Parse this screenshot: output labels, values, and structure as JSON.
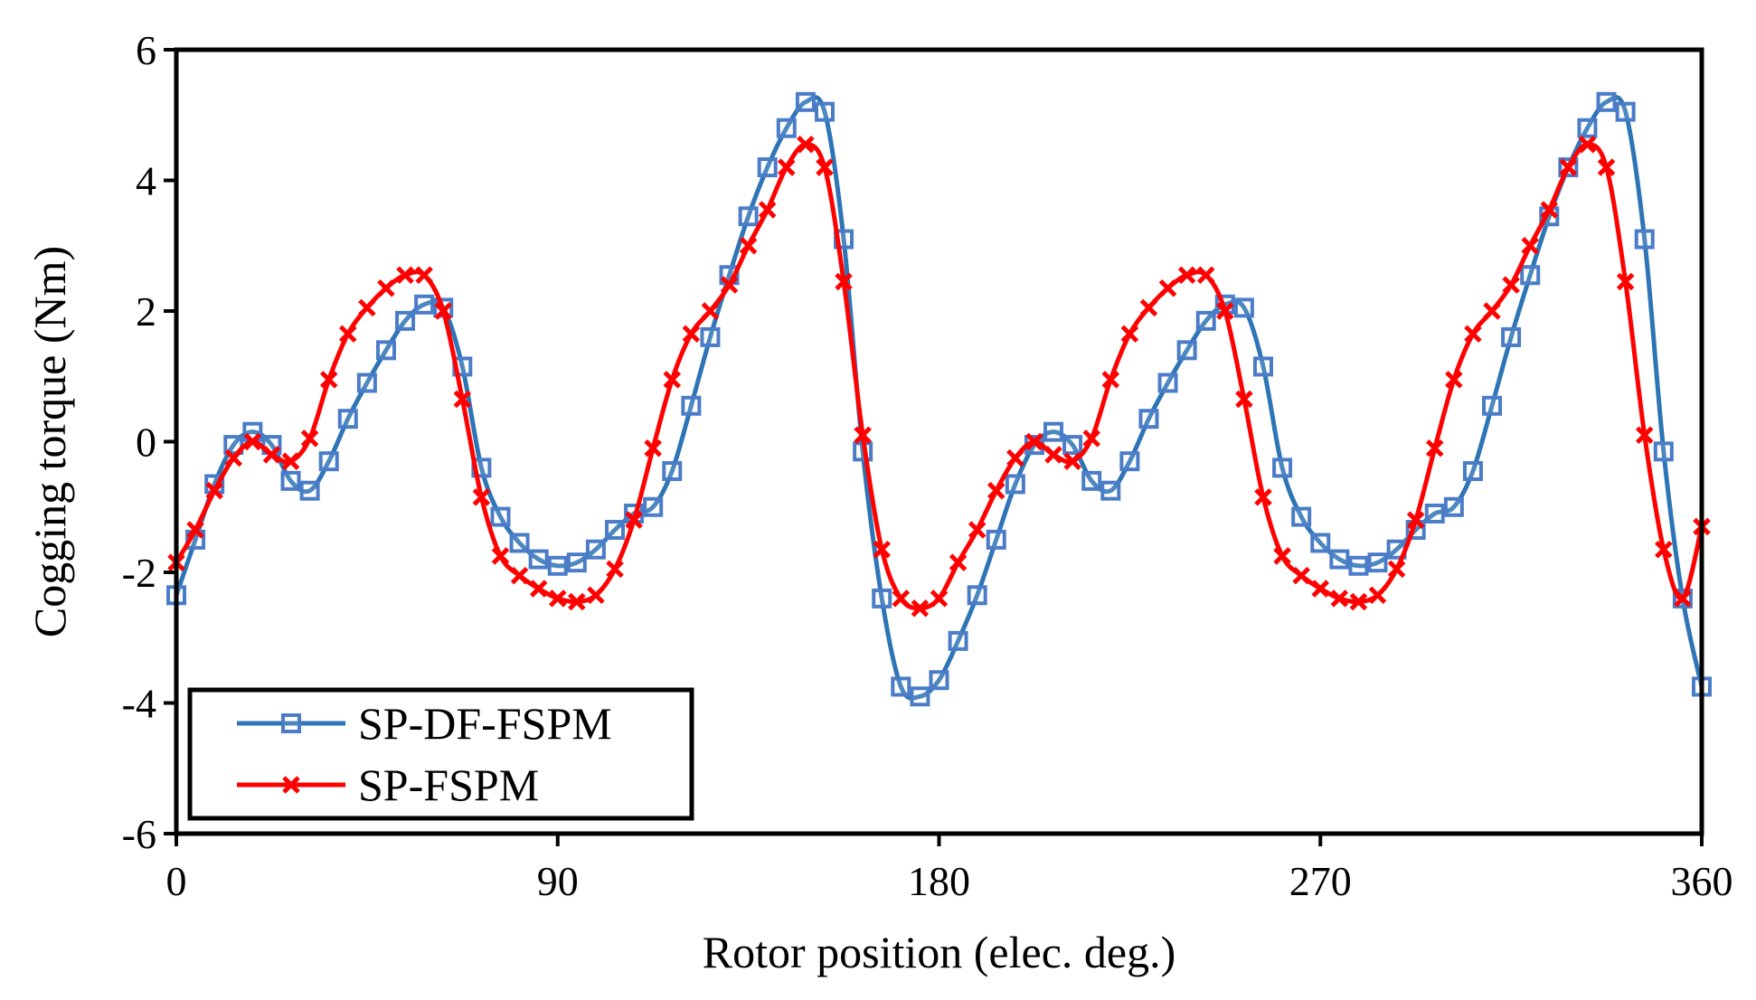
{
  "chart_data": {
    "type": "line",
    "title": "",
    "xlabel": "Rotor position (elec. deg.)",
    "ylabel": "Cogging torque (Nm)",
    "xlim": [
      0,
      360
    ],
    "ylim": [
      -6,
      6
    ],
    "xticks": [
      0,
      90,
      180,
      270,
      360
    ],
    "yticks": [
      -6,
      -4,
      -2,
      0,
      2,
      4,
      6
    ],
    "xtick_labels": [
      "0",
      "90",
      "180",
      "270",
      "360"
    ],
    "ytick_labels": [
      "-6",
      "-4",
      "-2",
      "0",
      "2",
      "4",
      "6"
    ],
    "grid": false,
    "legend_position": "bottom-left",
    "series": [
      {
        "name": "SP-DF-FSPM",
        "color": "#2E75B6",
        "marker": "square",
        "x": [
          0,
          4.5,
          9,
          13.5,
          18,
          22.5,
          27,
          31.5,
          36,
          40.5,
          45,
          49.5,
          54,
          58.5,
          63,
          67.5,
          72,
          76.5,
          81,
          85.5,
          90,
          94.5,
          99,
          103.5,
          108,
          112.5,
          117,
          121.5,
          126,
          130.5,
          135,
          139.5,
          144,
          148.5,
          153,
          157.5,
          162,
          166.5,
          171,
          175.5,
          180,
          184.5,
          189,
          193.5,
          198,
          202.5,
          207,
          211.5,
          216,
          220.5,
          225,
          229.5,
          234,
          238.5,
          243,
          247.5,
          252,
          256.5,
          261,
          265.5,
          270,
          274.5,
          279,
          283.5,
          288,
          292.5,
          297,
          301.5,
          306,
          310.5,
          315,
          319.5,
          324,
          328.5,
          333,
          337.5,
          342,
          346.5,
          351,
          355.5,
          360
        ],
        "y": [
          -2.35,
          -1.5,
          -0.65,
          -0.05,
          0.15,
          -0.05,
          -0.6,
          -0.75,
          -0.3,
          0.35,
          0.9,
          1.4,
          1.85,
          2.1,
          2.05,
          1.15,
          -0.4,
          -1.15,
          -1.55,
          -1.8,
          -1.9,
          -1.85,
          -1.65,
          -1.35,
          -1.1,
          -1.0,
          -0.45,
          0.55,
          1.6,
          2.55,
          3.45,
          4.2,
          4.8,
          5.2,
          5.05,
          3.1,
          -0.15,
          -2.4,
          -3.75,
          -3.9,
          -3.65,
          -3.05,
          -2.35,
          -1.5,
          -0.65,
          -0.05,
          0.15,
          -0.05,
          -0.6,
          -0.75,
          -0.3,
          0.35,
          0.9,
          1.4,
          1.85,
          2.1,
          2.05,
          1.15,
          -0.4,
          -1.15,
          -1.55,
          -1.8,
          -1.9,
          -1.85,
          -1.65,
          -1.35,
          -1.1,
          -1.0,
          -0.45,
          0.55,
          1.6,
          2.55,
          3.45,
          4.2,
          4.8,
          5.2,
          5.05,
          3.1,
          -0.15,
          -2.4,
          -3.75
        ]
      },
      {
        "name": "SP-FSPM",
        "color": "#FF0000",
        "marker": "x",
        "x": [
          0,
          4.5,
          9,
          13.5,
          18,
          22.5,
          27,
          31.5,
          36,
          40.5,
          45,
          49.5,
          54,
          58.5,
          63,
          67.5,
          72,
          76.5,
          81,
          85.5,
          90,
          94.5,
          99,
          103.5,
          108,
          112.5,
          117,
          121.5,
          126,
          130.5,
          135,
          139.5,
          144,
          148.5,
          153,
          157.5,
          162,
          166.5,
          171,
          175.5,
          180,
          184.5,
          189,
          193.5,
          198,
          202.5,
          207,
          211.5,
          216,
          220.5,
          225,
          229.5,
          234,
          238.5,
          243,
          247.5,
          252,
          256.5,
          261,
          265.5,
          270,
          274.5,
          279,
          283.5,
          288,
          292.5,
          297,
          301.5,
          306,
          310.5,
          315,
          319.5,
          324,
          328.5,
          333,
          337.5,
          342,
          346.5,
          351,
          355.5,
          360
        ],
        "y": [
          -1.85,
          -1.35,
          -0.75,
          -0.25,
          0.0,
          -0.2,
          -0.3,
          0.05,
          0.95,
          1.65,
          2.05,
          2.35,
          2.55,
          2.55,
          2.0,
          0.65,
          -0.85,
          -1.75,
          -2.05,
          -2.25,
          -2.4,
          -2.45,
          -2.35,
          -1.95,
          -1.2,
          -0.1,
          0.95,
          1.65,
          2.0,
          2.4,
          3.0,
          3.55,
          4.2,
          4.55,
          4.2,
          2.45,
          0.1,
          -1.65,
          -2.4,
          -2.55,
          -2.4,
          -1.85,
          -1.35,
          -0.75,
          -0.25,
          0.0,
          -0.2,
          -0.3,
          0.05,
          0.95,
          1.65,
          2.05,
          2.35,
          2.55,
          2.55,
          2.0,
          0.65,
          -0.85,
          -1.75,
          -2.05,
          -2.25,
          -2.4,
          -2.45,
          -2.35,
          -1.95,
          -1.2,
          -0.1,
          0.95,
          1.65,
          2.0,
          2.4,
          3.0,
          3.55,
          4.2,
          4.55,
          4.2,
          2.45,
          0.1,
          -1.65,
          -2.4,
          -1.3
        ]
      }
    ]
  }
}
